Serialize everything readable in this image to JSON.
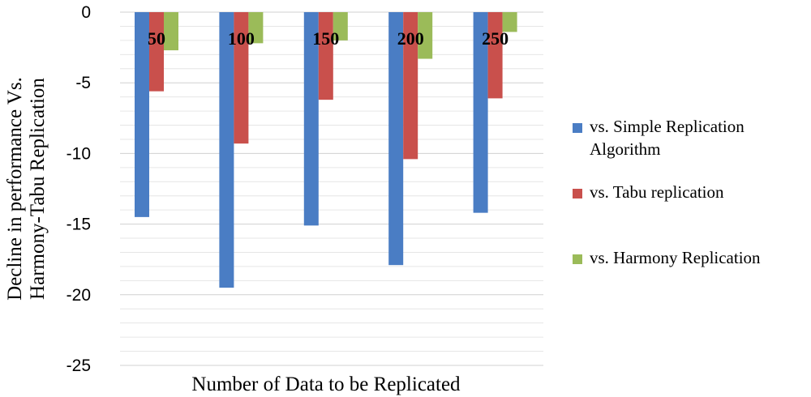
{
  "chart_data": {
    "type": "bar",
    "categories": [
      "50",
      "100",
      "150",
      "200",
      "250"
    ],
    "series": [
      {
        "name": "vs. Simple Replication Algorithm",
        "values": [
          -14.5,
          -19.5,
          -15.1,
          -17.9,
          -14.2
        ],
        "color": "#4a7dc4"
      },
      {
        "name": "vs. Tabu replication",
        "values": [
          -5.6,
          -9.3,
          -6.2,
          -10.4,
          -6.1
        ],
        "color": "#c9504c"
      },
      {
        "name": "vs. Harmony Replication",
        "values": [
          -2.7,
          -2.2,
          -2.0,
          -3.3,
          -1.4
        ],
        "color": "#9bbb59"
      }
    ],
    "legend_lines": [
      [
        "vs. Simple Replication",
        "Algorithm"
      ],
      [
        "vs. Tabu replication"
      ],
      [
        "vs. Harmony Replication"
      ]
    ],
    "xlabel": "Number of Data to be Replicated",
    "ylabel_lines": [
      "Decline in performance Vs.",
      "Harmony-Tabu Replication"
    ],
    "ylim": [
      -25,
      0
    ],
    "yticks": [
      0,
      -5,
      -10,
      -15,
      -20,
      -25
    ],
    "grid": true,
    "legend_position": "right"
  }
}
